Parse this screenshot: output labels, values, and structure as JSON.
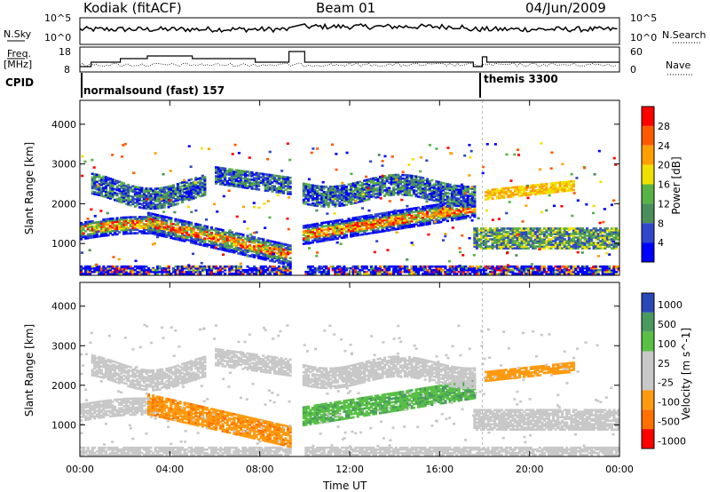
{
  "header": {
    "title_left": "Kodiak (fitACF)",
    "title_center": "Beam 01",
    "title_right": "04/Jun/2009"
  },
  "labels": {
    "nsky": "N.Sky",
    "freq": "Freq.",
    "freq_unit": "[MHz]",
    "cpid": "CPID",
    "nsearch": "N.Search",
    "nave": "Nave",
    "nsky_top": "10^5",
    "nsky_bottom": "10^0",
    "freq_top": "18",
    "freq_bottom": "8",
    "nave_top": "60",
    "nave_bottom": "0",
    "cpid_1": "normalsound (fast) 157",
    "cpid_2": "themis 3300",
    "xlabel": "Time UT",
    "ylabel": "Slant Range [km]"
  },
  "colors": {
    "power": [
      "#0000ff",
      "#2f47c8",
      "#4a8f5a",
      "#59b246",
      "#f0e000",
      "#ffa000",
      "#ff5a00",
      "#ff0000"
    ],
    "velocity": [
      "#ff0000",
      "#ff7000",
      "#ff9a10",
      "#c8c8c8",
      "#c8c8c8",
      "#59c046",
      "#4a9a60",
      "#2b48b8"
    ]
  },
  "chart_data": [
    {
      "type": "heatmap",
      "panel": "power",
      "x_ticks": [
        "00:00",
        "04:00",
        "08:00",
        "12:00",
        "16:00",
        "20:00",
        "00:00"
      ],
      "y_ticks": [
        "1000",
        "2000",
        "3000",
        "4000"
      ],
      "ylim": [
        200,
        4600
      ],
      "xlim_hours": [
        0,
        24
      ],
      "colorbar": {
        "label": "Power [dB]",
        "ticks": [
          "4",
          "8",
          "12",
          "16",
          "20",
          "24",
          "28"
        ]
      },
      "data_gap_hours": [
        9.3,
        9.9
      ]
    },
    {
      "type": "heatmap",
      "panel": "velocity",
      "x_ticks": [
        "00:00",
        "04:00",
        "08:00",
        "12:00",
        "16:00",
        "20:00",
        "00:00"
      ],
      "y_ticks": [
        "1000",
        "2000",
        "3000",
        "4000"
      ],
      "ylim": [
        200,
        4600
      ],
      "xlim_hours": [
        0,
        24
      ],
      "colorbar": {
        "label": "Velocity [m s^-1]",
        "ticks": [
          "1000",
          "500",
          "100",
          "25",
          "-25",
          "-100",
          "-500",
          "-1000"
        ]
      },
      "data_gap_hours": [
        9.3,
        9.9
      ]
    }
  ]
}
